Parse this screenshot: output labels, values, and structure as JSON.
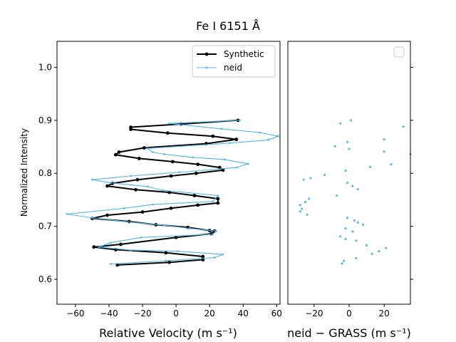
{
  "chart_data": {
    "title": "Fe I 6151 Å",
    "panels": [
      {
        "type": "line",
        "xlabel": "Relative Velocity (m s⁻¹)",
        "ylabel": "Normalized Intensity",
        "xlim": [
          -71,
          62
        ],
        "ylim": [
          0.553,
          1.049
        ],
        "xticks": [
          "−60",
          "−40",
          "−20",
          "0",
          "20",
          "40",
          "60"
        ],
        "yticks": [
          "0.6",
          "0.7",
          "0.8",
          "0.9",
          "1.0"
        ],
        "legend_position": "top-right",
        "series": [
          {
            "name": "Synthetic",
            "color": "#000000",
            "points": [
              [
                37,
                0.9
              ],
              [
                3,
                0.893
              ],
              [
                -27,
                0.887
              ],
              [
                -27,
                0.883
              ],
              [
                -5,
                0.876
              ],
              [
                22,
                0.87
              ],
              [
                36,
                0.864
              ],
              [
                18,
                0.856
              ],
              [
                -19,
                0.848
              ],
              [
                -34,
                0.84
              ],
              [
                -36,
                0.835
              ],
              [
                -22,
                0.828
              ],
              [
                -2,
                0.822
              ],
              [
                13,
                0.817
              ],
              [
                26,
                0.811
              ],
              [
                28,
                0.806
              ],
              [
                12,
                0.8
              ],
              [
                -3,
                0.795
              ],
              [
                -23,
                0.788
              ],
              [
                -38,
                0.781
              ],
              [
                -41,
                0.776
              ],
              [
                -24,
                0.769
              ],
              [
                -4,
                0.764
              ],
              [
                11,
                0.758
              ],
              [
                25,
                0.752
              ],
              [
                25,
                0.744
              ],
              [
                13,
                0.74
              ],
              [
                -3,
                0.734
              ],
              [
                -20,
                0.727
              ],
              [
                -41,
                0.721
              ],
              [
                -50,
                0.715
              ],
              [
                -28,
                0.709
              ],
              [
                -12,
                0.703
              ],
              [
                7,
                0.698
              ],
              [
                20,
                0.692
              ],
              [
                23,
                0.691
              ],
              [
                21,
                0.686
              ],
              [
                0,
                0.679
              ],
              [
                -33,
                0.666
              ],
              [
                -49,
                0.661
              ],
              [
                -36,
                0.656
              ],
              [
                -6,
                0.65
              ],
              [
                16,
                0.643
              ],
              [
                16,
                0.637
              ],
              [
                -4,
                0.632
              ],
              [
                -35,
                0.627
              ]
            ]
          },
          {
            "name": "neid",
            "color": "#56b4e9",
            "points": [
              [
                38,
                0.9
              ],
              [
                -4,
                0.894
              ],
              [
                27,
                0.884
              ],
              [
                50,
                0.877
              ],
              [
                61,
                0.87
              ],
              [
                55,
                0.863
              ],
              [
                32,
                0.857
              ],
              [
                -17,
                0.847
              ],
              [
                -14,
                0.84
              ],
              [
                -7,
                0.836
              ],
              [
                10,
                0.83
              ],
              [
                29,
                0.826
              ],
              [
                43,
                0.818
              ],
              [
                36,
                0.811
              ],
              [
                2,
                0.802
              ],
              [
                -27,
                0.795
              ],
              [
                -50,
                0.788
              ],
              [
                -39,
                0.782
              ],
              [
                -17,
                0.775
              ],
              [
                -8,
                0.768
              ],
              [
                25,
                0.758
              ],
              [
                22,
                0.747
              ],
              [
                -14,
                0.741
              ],
              [
                -31,
                0.734
              ],
              [
                -65,
                0.723
              ],
              [
                -50,
                0.716
              ],
              [
                -31,
                0.709
              ],
              [
                -7,
                0.702
              ],
              [
                8,
                0.696
              ],
              [
                24,
                0.691
              ],
              [
                22,
                0.685
              ],
              [
                -21,
                0.679
              ],
              [
                -39,
                0.669
              ],
              [
                -46,
                0.661
              ],
              [
                -27,
                0.655
              ],
              [
                1,
                0.653
              ],
              [
                28,
                0.647
              ],
              [
                23,
                0.641
              ],
              [
                -6,
                0.635
              ],
              [
                -39,
                0.629
              ]
            ]
          }
        ]
      },
      {
        "type": "scatter",
        "xlabel": "neid − GRASS (m s⁻¹)",
        "xlim": [
          -35,
          35
        ],
        "xticks": [
          "−20",
          "0",
          "20"
        ],
        "legend_position": "top-right",
        "series": [
          {
            "name": "",
            "color": "#56b4e9",
            "points": [
              [
                1,
                0.9
              ],
              [
                -5,
                0.894
              ],
              [
                31,
                0.888
              ],
              [
                20,
                0.864
              ],
              [
                -1,
                0.859
              ],
              [
                -8,
                0.851
              ],
              [
                0,
                0.846
              ],
              [
                20,
                0.841
              ],
              [
                35,
                0.836
              ],
              [
                24,
                0.817
              ],
              [
                12,
                0.812
              ],
              [
                -2,
                0.805
              ],
              [
                -14,
                0.797
              ],
              [
                -26,
                0.788
              ],
              [
                -22,
                0.791
              ],
              [
                -1,
                0.782
              ],
              [
                2,
                0.776
              ],
              [
                5,
                0.77
              ],
              [
                -7,
                0.758
              ],
              [
                -23,
                0.752
              ],
              [
                -25,
                0.746
              ],
              [
                -28,
                0.74
              ],
              [
                -27,
                0.733
              ],
              [
                -28,
                0.728
              ],
              [
                -24,
                0.722
              ],
              [
                -1,
                0.716
              ],
              [
                3,
                0.711
              ],
              [
                5,
                0.707
              ],
              [
                8,
                0.703
              ],
              [
                -2,
                0.696
              ],
              [
                2,
                0.69
              ],
              [
                -5,
                0.681
              ],
              [
                -2,
                0.676
              ],
              [
                4,
                0.673
              ],
              [
                10,
                0.664
              ],
              [
                21,
                0.659
              ],
              [
                17,
                0.653
              ],
              [
                13,
                0.648
              ],
              [
                4,
                0.64
              ],
              [
                -3,
                0.635
              ],
              [
                -4,
                0.63
              ]
            ]
          }
        ]
      }
    ]
  }
}
